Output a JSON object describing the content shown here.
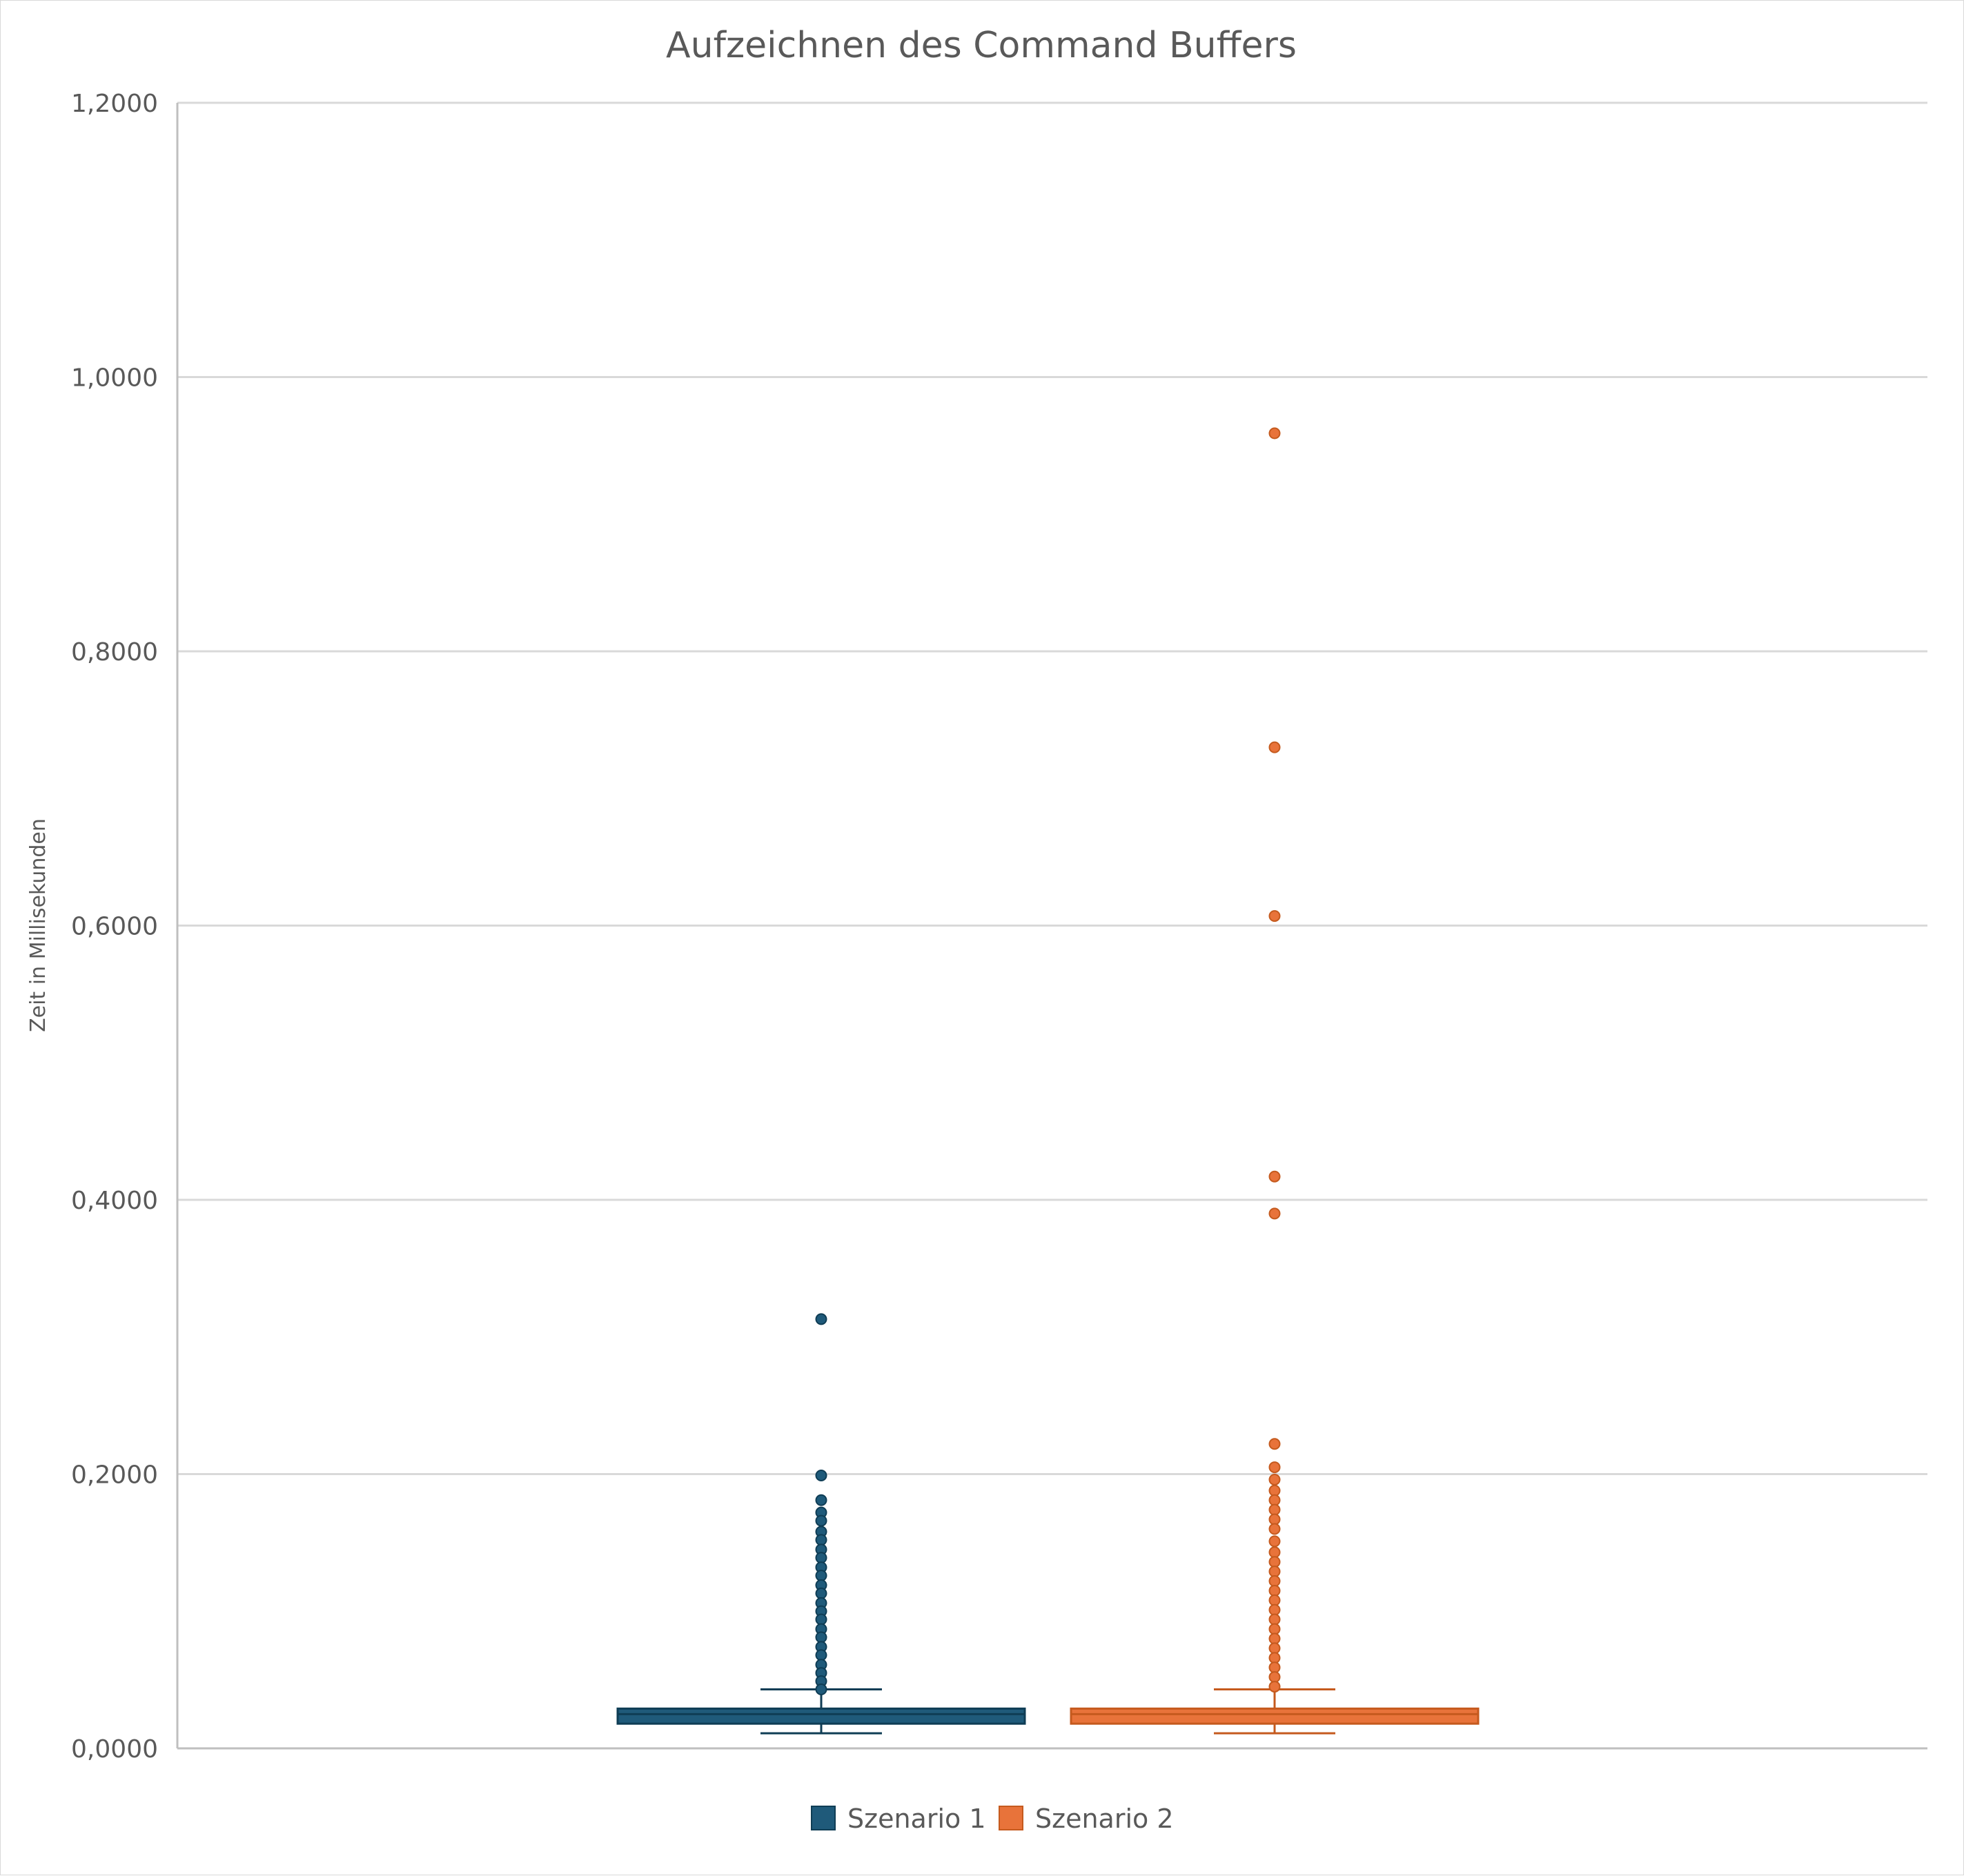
{
  "chart_data": {
    "type": "box",
    "title": "Aufzeichnen des Command Buffers",
    "ylabel": "Zeit in Millisekunden",
    "xlabel": "",
    "ylim": [
      0,
      1.2
    ],
    "y_ticks": [
      0,
      0.2,
      0.4,
      0.6,
      0.8,
      1.0,
      1.2
    ],
    "y_tick_labels": [
      "0,0000",
      "0,2000",
      "0,4000",
      "0,6000",
      "0,8000",
      "1,0000",
      "1,2000"
    ],
    "grid": true,
    "legend_position": "bottom",
    "series": [
      {
        "name": "Szenario 1",
        "color": "#1f5a7a",
        "stroke": "#0f3d55",
        "min": 0.011,
        "q1": 0.025,
        "median": 0.025,
        "q3": 0.029,
        "max": 0.043,
        "box_low": 0.018,
        "outliers": [
          0.313,
          0.199,
          0.181,
          0.172,
          0.166,
          0.158,
          0.152,
          0.145,
          0.139,
          0.132,
          0.126,
          0.119,
          0.113,
          0.106,
          0.1,
          0.094,
          0.087,
          0.081,
          0.074,
          0.068,
          0.061,
          0.055,
          0.049,
          0.043
        ]
      },
      {
        "name": "Szenario 2",
        "color": "#e8733a",
        "stroke": "#c55a1e",
        "min": 0.011,
        "q1": 0.025,
        "median": 0.025,
        "q3": 0.029,
        "max": 0.043,
        "box_low": 0.018,
        "outliers": [
          0.959,
          0.73,
          0.607,
          0.417,
          0.39,
          0.222,
          0.205,
          0.196,
          0.188,
          0.181,
          0.174,
          0.167,
          0.16,
          0.151,
          0.143,
          0.136,
          0.129,
          0.122,
          0.115,
          0.108,
          0.101,
          0.094,
          0.087,
          0.08,
          0.073,
          0.066,
          0.059,
          0.052,
          0.045
        ]
      }
    ]
  }
}
